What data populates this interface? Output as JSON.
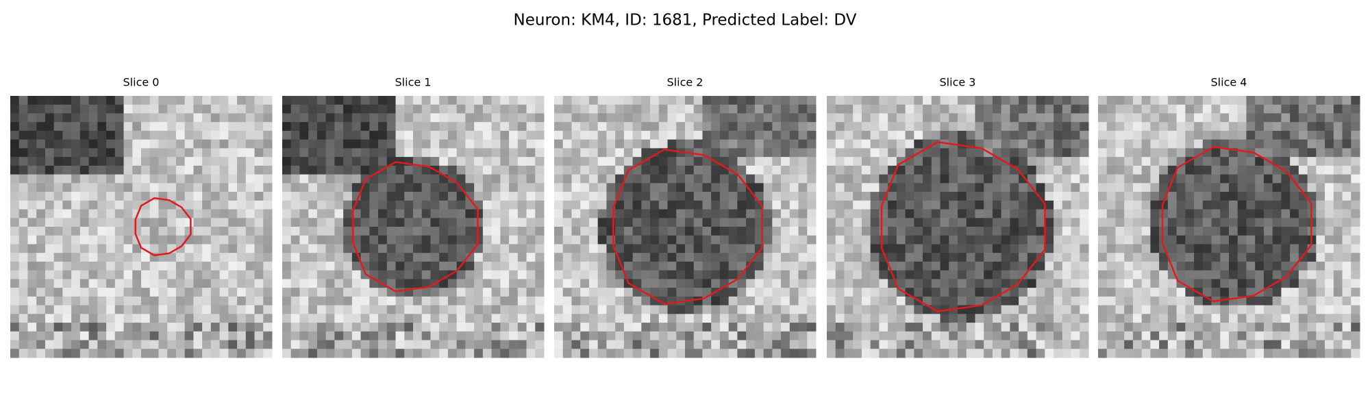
{
  "title": "Neuron: KM4, ID: 1681, Predicted Label: DV",
  "panels": [
    {
      "title": "Slice 0"
    },
    {
      "title": "Slice 1"
    },
    {
      "title": "Slice 2"
    },
    {
      "title": "Slice 3"
    },
    {
      "title": "Slice 4"
    }
  ]
}
